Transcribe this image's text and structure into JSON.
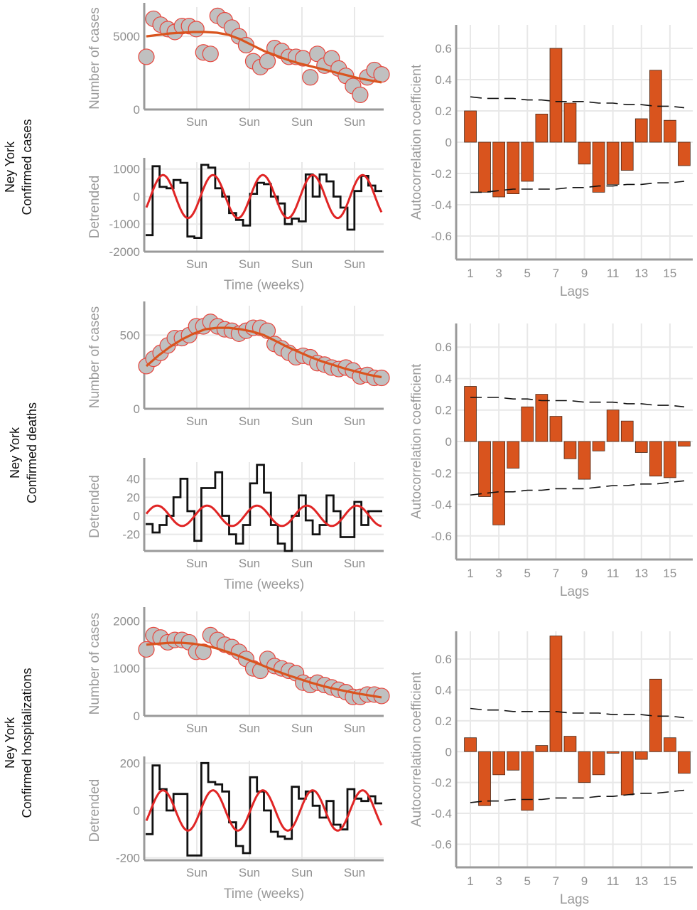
{
  "colors": {
    "accent": "#d9541e",
    "bar_edge": "#4a2a1a",
    "marker_fill": "#c0c0c0",
    "marker_edge": "#e8453c",
    "fit_red": "#e02525",
    "detrended_line": "#111111",
    "grid": "#e8e8e8",
    "axis": "#9a9a9a"
  },
  "rows": [
    {
      "label_line1": "Ney York",
      "label_line2": "Confirmed cases"
    },
    {
      "label_line1": "Ney York",
      "label_line2": "Confirmed deaths"
    },
    {
      "label_line1": "Ney York",
      "label_line2": "Confirmed hospitalizations"
    }
  ],
  "chart_data": [
    {
      "type": "scatter",
      "panel": "cases-series",
      "ylabel": "Number of cases",
      "xlabel": "",
      "x_ticklabels": [
        "Sun",
        "Sun",
        "Sun",
        "Sun"
      ],
      "y_ticks": [
        0,
        5000
      ],
      "ylim": [
        0,
        7000
      ],
      "grid": true,
      "points": [
        3600,
        6200,
        5800,
        5500,
        5300,
        5700,
        5700,
        5500,
        3900,
        3800,
        6400,
        6100,
        5600,
        5000,
        4400,
        3300,
        2900,
        3300,
        4200,
        4000,
        3600,
        3600,
        3500,
        2200,
        3800,
        3000,
        3500,
        2800,
        2300,
        1600,
        1000,
        2200,
        2700,
        2400
      ],
      "trend": [
        5000,
        5100,
        5200,
        5250,
        5300,
        5300,
        5250,
        5100,
        4800,
        4400,
        4000,
        3700,
        3400,
        3150,
        2950,
        2750,
        2550,
        2350,
        2150,
        2000,
        1850
      ]
    },
    {
      "type": "line",
      "panel": "cases-detrended",
      "ylabel": "Detrended",
      "xlabel": "Time (weeks)",
      "x_ticklabels": [
        "Sun",
        "Sun",
        "Sun",
        "Sun"
      ],
      "y_ticks": [
        -2000,
        -1000,
        0,
        1000
      ],
      "ylim": [
        -2000,
        1250
      ],
      "grid": true,
      "steps": [
        -1400,
        1100,
        350,
        300,
        600,
        500,
        -1450,
        -1500,
        1150,
        1050,
        300,
        0,
        -600,
        -850,
        -1050,
        100,
        500,
        450,
        0,
        -250,
        -1000,
        -800,
        -900,
        800,
        0,
        800,
        550,
        0,
        -400,
        -1200,
        200,
        750,
        400,
        200
      ],
      "fit_amplitude": 780,
      "fit_period": 7,
      "fit_phase": 5.75
    },
    {
      "type": "bar",
      "panel": "cases-acf",
      "xlabel": "Lags",
      "ylabel": "Autocorrelation coefficient",
      "categories": [
        1,
        2,
        3,
        4,
        5,
        6,
        7,
        8,
        9,
        10,
        11,
        12,
        13,
        14,
        15,
        16
      ],
      "x_ticklabels": [
        "1",
        "3",
        "5",
        "7",
        "9",
        "11",
        "13",
        "15"
      ],
      "values": [
        0.2,
        -0.32,
        -0.35,
        -0.33,
        -0.25,
        0.18,
        0.6,
        0.25,
        -0.14,
        -0.32,
        -0.27,
        -0.18,
        0.15,
        0.46,
        0.14,
        -0.15
      ],
      "y_ticks": [
        -0.6,
        -0.4,
        -0.2,
        0,
        0.2,
        0.4,
        0.6
      ],
      "ylim": [
        -0.75,
        0.75
      ],
      "grid": true,
      "upper_bound": [
        0.29,
        0.28,
        0.28,
        0.28,
        0.27,
        0.27,
        0.26,
        0.26,
        0.26,
        0.25,
        0.25,
        0.24,
        0.24,
        0.23,
        0.23,
        0.22
      ],
      "lower_bound": [
        -0.32,
        -0.32,
        -0.31,
        -0.3,
        -0.3,
        -0.3,
        -0.3,
        -0.29,
        -0.29,
        -0.28,
        -0.28,
        -0.27,
        -0.27,
        -0.26,
        -0.26,
        -0.25
      ]
    },
    {
      "type": "scatter",
      "panel": "deaths-series",
      "ylabel": "Number of cases",
      "xlabel": "",
      "x_ticklabels": [
        "Sun",
        "Sun",
        "Sun",
        "Sun"
      ],
      "y_ticks": [
        0,
        500
      ],
      "ylim": [
        0,
        700
      ],
      "grid": true,
      "points": [
        290,
        340,
        380,
        430,
        480,
        480,
        500,
        560,
        560,
        590,
        560,
        540,
        530,
        510,
        530,
        550,
        550,
        530,
        440,
        410,
        380,
        350,
        360,
        350,
        310,
        300,
        280,
        270,
        280,
        260,
        220,
        230,
        210,
        210
      ],
      "trend": [
        290,
        360,
        420,
        470,
        510,
        540,
        550,
        550,
        540,
        525,
        500,
        460,
        420,
        385,
        350,
        320,
        295,
        270,
        250,
        230,
        215
      ]
    },
    {
      "type": "line",
      "panel": "deaths-detrended",
      "ylabel": "Detrended",
      "xlabel": "Time (weeks)",
      "x_ticklabels": [
        "Sun",
        "Sun",
        "Sun",
        "Sun"
      ],
      "y_ticks": [
        -20,
        0,
        20,
        40
      ],
      "ylim": [
        -38,
        58
      ],
      "grid": true,
      "steps": [
        -9,
        -18,
        -10,
        0,
        20,
        40,
        5,
        -27,
        30,
        30,
        47,
        0,
        -20,
        -30,
        -10,
        35,
        55,
        25,
        -10,
        -30,
        -38,
        0,
        22,
        -5,
        -20,
        -10,
        22,
        5,
        -23,
        -23,
        15,
        -10,
        5,
        5
      ],
      "fit_amplitude": 11,
      "fit_period": 7,
      "fit_phase": 0.2
    },
    {
      "type": "bar",
      "panel": "deaths-acf",
      "xlabel": "Lags",
      "ylabel": "Autocorrelation coefficient",
      "categories": [
        1,
        2,
        3,
        4,
        5,
        6,
        7,
        8,
        9,
        10,
        11,
        12,
        13,
        14,
        15,
        16
      ],
      "x_ticklabels": [
        "1",
        "3",
        "5",
        "7",
        "9",
        "11",
        "13",
        "15"
      ],
      "values": [
        0.35,
        -0.35,
        -0.53,
        -0.17,
        0.22,
        0.3,
        0.16,
        -0.11,
        -0.24,
        -0.06,
        0.2,
        0.13,
        -0.07,
        -0.22,
        -0.23,
        -0.03
      ],
      "y_ticks": [
        -0.6,
        -0.4,
        -0.2,
        0,
        0.2,
        0.4,
        0.6
      ],
      "ylim": [
        -0.75,
        0.75
      ],
      "grid": true,
      "upper_bound": [
        0.28,
        0.28,
        0.28,
        0.27,
        0.27,
        0.26,
        0.26,
        0.26,
        0.25,
        0.25,
        0.25,
        0.24,
        0.24,
        0.23,
        0.23,
        0.22
      ],
      "lower_bound": [
        -0.34,
        -0.33,
        -0.32,
        -0.32,
        -0.31,
        -0.31,
        -0.3,
        -0.3,
        -0.3,
        -0.29,
        -0.28,
        -0.28,
        -0.27,
        -0.27,
        -0.26,
        -0.25
      ]
    },
    {
      "type": "scatter",
      "panel": "hosp-series",
      "ylabel": "Number of cases",
      "xlabel": "",
      "x_ticklabels": [
        "Sun",
        "Sun",
        "Sun",
        "Sun"
      ],
      "y_ticks": [
        0,
        1000,
        2000
      ],
      "ylim": [
        0,
        2200
      ],
      "grid": true,
      "points": [
        1400,
        1700,
        1650,
        1550,
        1600,
        1600,
        1550,
        1350,
        1350,
        1700,
        1600,
        1500,
        1450,
        1350,
        1200,
        1000,
        950,
        1200,
        1050,
        1000,
        950,
        900,
        700,
        650,
        700,
        650,
        600,
        550,
        500,
        400,
        400,
        450,
        450,
        420
      ],
      "trend": [
        1500,
        1520,
        1540,
        1540,
        1520,
        1480,
        1420,
        1340,
        1250,
        1150,
        1050,
        950,
        860,
        780,
        700,
        630,
        570,
        520,
        470,
        430,
        390
      ]
    },
    {
      "type": "line",
      "panel": "hosp-detrended",
      "ylabel": "Detrended",
      "xlabel": "Time (weeks)",
      "x_ticklabels": [
        "Sun",
        "Sun",
        "Sun",
        "Sun"
      ],
      "y_ticks": [
        -200,
        0,
        200
      ],
      "ylim": [
        -210,
        210
      ],
      "grid": true,
      "steps": [
        -100,
        190,
        90,
        0,
        70,
        70,
        -190,
        -190,
        200,
        120,
        110,
        80,
        -50,
        -150,
        -180,
        140,
        80,
        0,
        -90,
        -110,
        -120,
        100,
        50,
        80,
        20,
        -30,
        40,
        -60,
        -80,
        90,
        50,
        40,
        60,
        30
      ],
      "fit_amplitude": 85,
      "fit_period": 7,
      "fit_phase": 5.75
    },
    {
      "type": "bar",
      "panel": "hosp-acf",
      "xlabel": "Lags",
      "ylabel": "Autocorrelation coefficient",
      "categories": [
        1,
        2,
        3,
        4,
        5,
        6,
        7,
        8,
        9,
        10,
        11,
        12,
        13,
        14,
        15,
        16
      ],
      "x_ticklabels": [
        "1",
        "3",
        "5",
        "7",
        "9",
        "11",
        "13",
        "15"
      ],
      "values": [
        0.09,
        -0.35,
        -0.15,
        -0.12,
        -0.38,
        0.04,
        0.75,
        0.1,
        -0.2,
        -0.15,
        -0.01,
        -0.28,
        -0.05,
        0.47,
        0.09,
        -0.14
      ],
      "y_ticks": [
        -0.6,
        -0.4,
        -0.2,
        0,
        0.2,
        0.4,
        0.6
      ],
      "ylim": [
        -0.75,
        0.78
      ],
      "grid": true,
      "upper_bound": [
        0.28,
        0.27,
        0.27,
        0.26,
        0.26,
        0.26,
        0.26,
        0.25,
        0.25,
        0.25,
        0.24,
        0.24,
        0.24,
        0.23,
        0.23,
        0.22
      ],
      "lower_bound": [
        -0.33,
        -0.32,
        -0.32,
        -0.31,
        -0.31,
        -0.31,
        -0.3,
        -0.3,
        -0.3,
        -0.29,
        -0.29,
        -0.28,
        -0.27,
        -0.27,
        -0.26,
        -0.25
      ]
    }
  ]
}
